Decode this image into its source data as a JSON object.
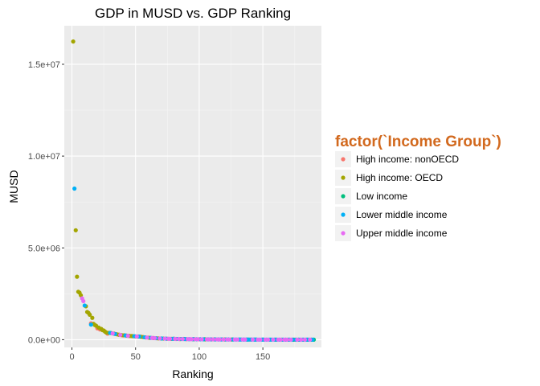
{
  "chart_data": {
    "type": "scatter",
    "title": "GDP in MUSD vs. GDP Ranking",
    "xlabel": "Ranking",
    "ylabel": "MUSD",
    "xlim": [
      -6,
      196
    ],
    "ylim": [
      -420000,
      17100000
    ],
    "x_ticks": [
      0,
      50,
      100,
      150
    ],
    "x_tick_labels": [
      "0",
      "50",
      "100",
      "150"
    ],
    "y_ticks": [
      0,
      5000000,
      10000000,
      15000000
    ],
    "y_tick_labels": [
      "0.0e+00",
      "5.0e+06",
      "1.0e+07",
      "1.5e+07"
    ],
    "grid": true,
    "legend": {
      "title": "factor(`Income Group`)",
      "title_color": "#d2691e",
      "placement": "right",
      "entries": [
        {
          "label": "High income: nonOECD",
          "color": "#f8766d"
        },
        {
          "label": "High income: OECD",
          "color": "#a3a500"
        },
        {
          "label": "Low income",
          "color": "#00bf7d"
        },
        {
          "label": "Lower middle income",
          "color": "#00b0f6"
        },
        {
          "label": "Upper middle income",
          "color": "#e76bf3"
        }
      ]
    },
    "series": [
      {
        "name": "High income: nonOECD",
        "color": "#f8766d",
        "points": [
          [
            15,
            890000
          ],
          [
            20,
            620000
          ],
          [
            22,
            560000
          ],
          [
            28,
            330000
          ],
          [
            36,
            280000
          ],
          [
            40,
            230000
          ],
          [
            46,
            200000
          ],
          [
            55,
            150000
          ],
          [
            60,
            110000
          ],
          [
            67,
            75000
          ],
          [
            75,
            50000
          ],
          [
            82,
            40000
          ],
          [
            90,
            30000
          ],
          [
            100,
            22000
          ],
          [
            110,
            15000
          ],
          [
            125,
            10000
          ],
          [
            140,
            6000
          ],
          [
            160,
            3000
          ],
          [
            175,
            1500
          ]
        ]
      },
      {
        "name": "High income: OECD",
        "color": "#a3a500",
        "points": [
          [
            1,
            16240000
          ],
          [
            3,
            5960000
          ],
          [
            4,
            3430000
          ],
          [
            5,
            2610000
          ],
          [
            6,
            2560000
          ],
          [
            7,
            2420000
          ],
          [
            11,
            1820000
          ],
          [
            12,
            1510000
          ],
          [
            13,
            1460000
          ],
          [
            14,
            1360000
          ],
          [
            16,
            1190000
          ],
          [
            17,
            860000
          ],
          [
            18,
            800000
          ],
          [
            19,
            760000
          ],
          [
            21,
            660000
          ],
          [
            23,
            590000
          ],
          [
            24,
            520000
          ],
          [
            25,
            500000
          ],
          [
            26,
            440000
          ],
          [
            27,
            390000
          ],
          [
            29,
            370000
          ],
          [
            31,
            360000
          ],
          [
            33,
            330000
          ],
          [
            35,
            300000
          ],
          [
            37,
            270000
          ],
          [
            39,
            250000
          ],
          [
            41,
            240000
          ],
          [
            43,
            220000
          ],
          [
            45,
            210000
          ],
          [
            47,
            200000
          ],
          [
            48,
            190000
          ],
          [
            50,
            180000
          ],
          [
            52,
            170000
          ],
          [
            54,
            160000
          ],
          [
            56,
            140000
          ],
          [
            58,
            120000
          ],
          [
            61,
            100000
          ],
          [
            64,
            90000
          ],
          [
            68,
            70000
          ],
          [
            72,
            60000
          ],
          [
            78,
            45000
          ],
          [
            85,
            35000
          ],
          [
            95,
            25000
          ],
          [
            105,
            18000
          ],
          [
            120,
            12000
          ]
        ]
      },
      {
        "name": "Low income",
        "color": "#00bf7d",
        "points": [
          [
            70,
            65000
          ],
          [
            80,
            50000
          ],
          [
            88,
            40000
          ],
          [
            96,
            30000
          ],
          [
            104,
            24000
          ],
          [
            112,
            18000
          ],
          [
            118,
            15000
          ],
          [
            126,
            12000
          ],
          [
            132,
            10000
          ],
          [
            138,
            8000
          ],
          [
            144,
            7000
          ],
          [
            150,
            6000
          ],
          [
            156,
            5000
          ],
          [
            160,
            4000
          ],
          [
            165,
            3500
          ],
          [
            170,
            3000
          ],
          [
            174,
            2500
          ],
          [
            178,
            2000
          ],
          [
            182,
            1500
          ],
          [
            185,
            1200
          ],
          [
            188,
            1000
          ],
          [
            190,
            800
          ]
        ]
      },
      {
        "name": "Lower middle income",
        "color": "#00b0f6",
        "points": [
          [
            2,
            8230000
          ],
          [
            10,
            1860000
          ],
          [
            15,
            820000
          ],
          [
            30,
            370000
          ],
          [
            34,
            310000
          ],
          [
            42,
            230000
          ],
          [
            49,
            190000
          ],
          [
            53,
            170000
          ],
          [
            57,
            130000
          ],
          [
            62,
            100000
          ],
          [
            66,
            80000
          ],
          [
            71,
            65000
          ],
          [
            74,
            55000
          ],
          [
            79,
            48000
          ],
          [
            83,
            42000
          ],
          [
            86,
            38000
          ],
          [
            89,
            34000
          ],
          [
            92,
            30000
          ],
          [
            95,
            28000
          ],
          [
            98,
            25000
          ],
          [
            101,
            22000
          ],
          [
            103,
            20000
          ],
          [
            107,
            18000
          ],
          [
            109,
            17000
          ],
          [
            113,
            15000
          ],
          [
            115,
            14000
          ],
          [
            117,
            13000
          ],
          [
            121,
            12000
          ],
          [
            123,
            11000
          ],
          [
            127,
            10000
          ],
          [
            129,
            9500
          ],
          [
            131,
            9000
          ],
          [
            133,
            8500
          ],
          [
            135,
            8000
          ],
          [
            137,
            7500
          ],
          [
            139,
            7000
          ],
          [
            141,
            6500
          ],
          [
            143,
            6000
          ],
          [
            145,
            5500
          ],
          [
            147,
            5000
          ],
          [
            149,
            4800
          ],
          [
            151,
            4500
          ],
          [
            153,
            4200
          ],
          [
            155,
            4000
          ],
          [
            157,
            3800
          ],
          [
            159,
            3500
          ],
          [
            161,
            3200
          ],
          [
            163,
            3000
          ],
          [
            166,
            2800
          ],
          [
            168,
            2600
          ],
          [
            171,
            2400
          ],
          [
            173,
            2200
          ],
          [
            176,
            2000
          ],
          [
            179,
            1800
          ],
          [
            181,
            1600
          ],
          [
            184,
            1400
          ],
          [
            186,
            1200
          ],
          [
            189,
            1000
          ]
        ]
      },
      {
        "name": "Upper middle income",
        "color": "#e76bf3",
        "points": [
          [
            8,
            2250000
          ],
          [
            9,
            2100000
          ],
          [
            32,
            340000
          ],
          [
            38,
            260000
          ],
          [
            44,
            210000
          ],
          [
            51,
            175000
          ],
          [
            59,
            115000
          ],
          [
            63,
            95000
          ],
          [
            65,
            85000
          ],
          [
            69,
            70000
          ],
          [
            73,
            58000
          ],
          [
            76,
            52000
          ],
          [
            77,
            49000
          ],
          [
            81,
            44000
          ],
          [
            84,
            40000
          ],
          [
            87,
            36000
          ],
          [
            91,
            31000
          ],
          [
            93,
            29000
          ],
          [
            94,
            27000
          ],
          [
            97,
            26000
          ],
          [
            99,
            24000
          ],
          [
            102,
            21000
          ],
          [
            106,
            19000
          ],
          [
            108,
            17500
          ],
          [
            111,
            16000
          ],
          [
            114,
            14500
          ],
          [
            116,
            13500
          ],
          [
            119,
            12500
          ],
          [
            122,
            11500
          ],
          [
            124,
            10500
          ],
          [
            128,
            9800
          ],
          [
            130,
            9200
          ],
          [
            134,
            8200
          ],
          [
            136,
            7800
          ],
          [
            142,
            6200
          ],
          [
            146,
            5200
          ],
          [
            148,
            4900
          ],
          [
            152,
            4400
          ],
          [
            154,
            4100
          ],
          [
            158,
            3600
          ],
          [
            162,
            3100
          ],
          [
            164,
            2900
          ],
          [
            167,
            2700
          ],
          [
            169,
            2500
          ],
          [
            172,
            2300
          ],
          [
            177,
            1900
          ],
          [
            180,
            1700
          ],
          [
            183,
            1500
          ],
          [
            187,
            1100
          ]
        ]
      }
    ]
  }
}
